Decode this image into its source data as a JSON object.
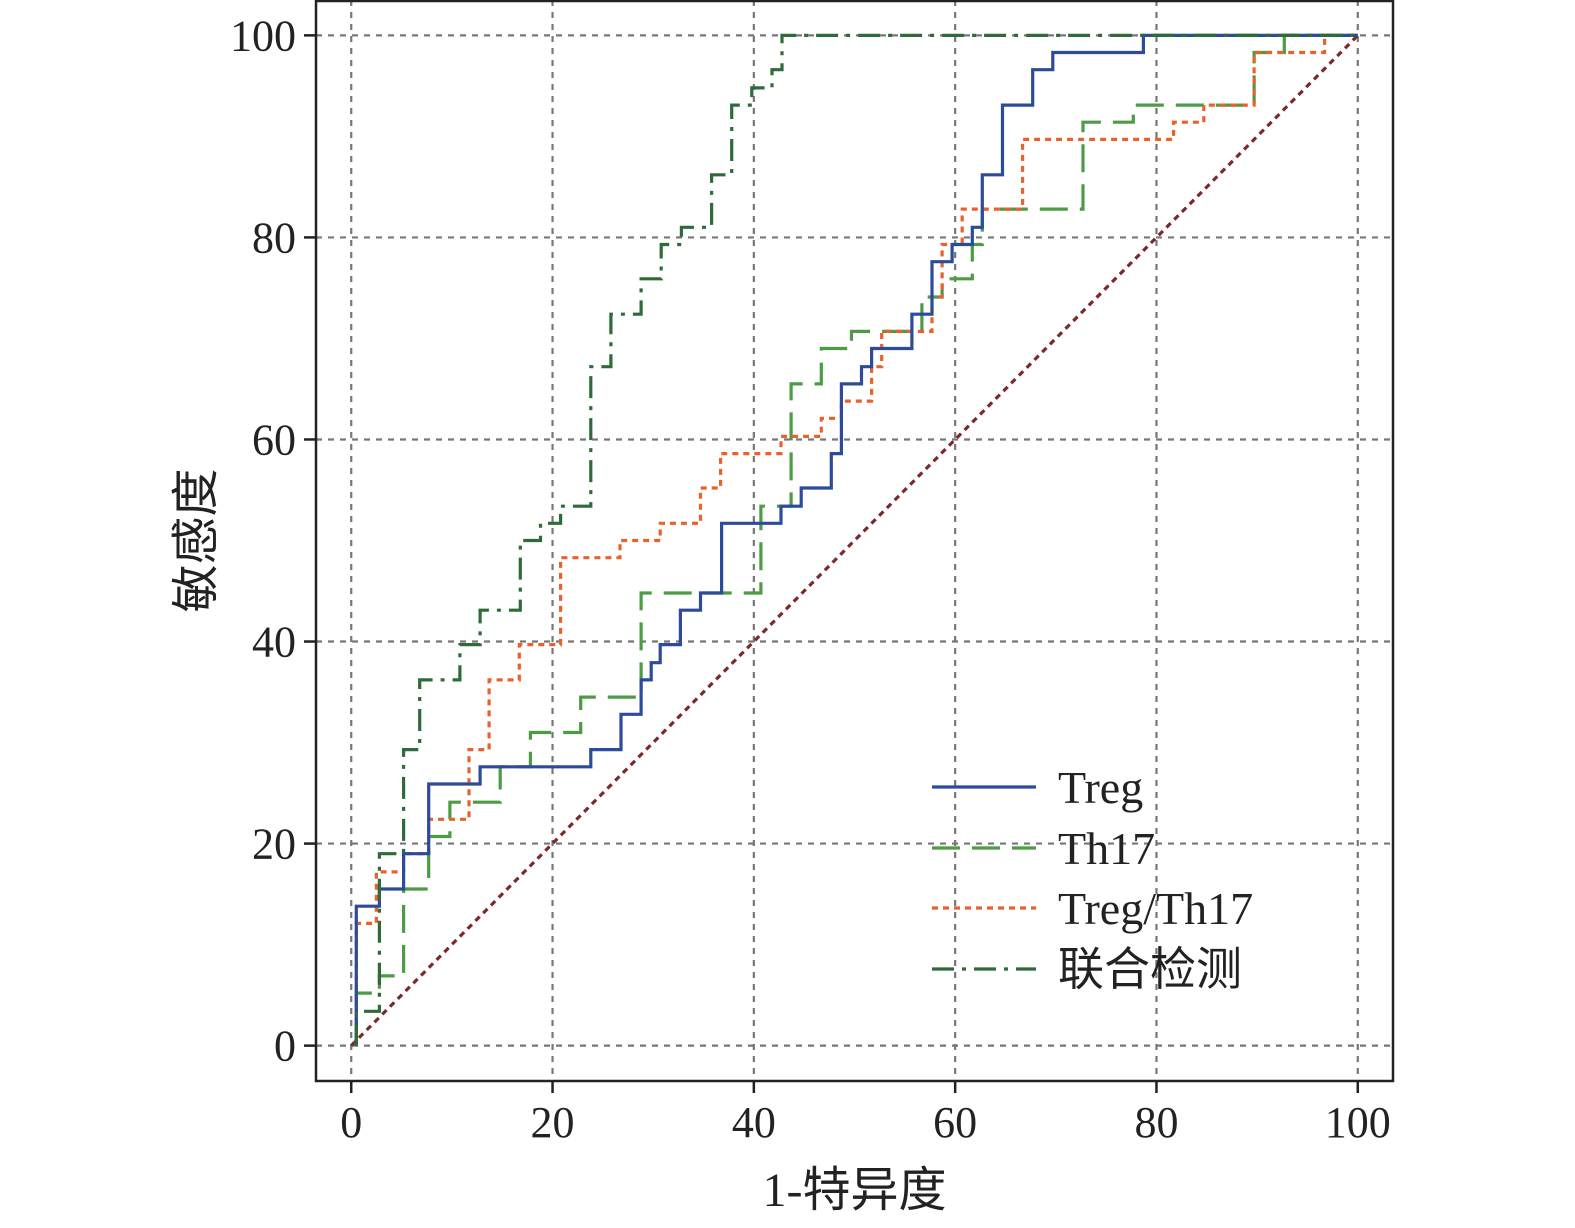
{
  "chart_data": {
    "type": "line",
    "xlabel": "1-特异度",
    "ylabel": "敏感度",
    "xlim": [
      -3.5,
      103.5
    ],
    "ylim": [
      -3.5,
      103.5
    ],
    "xticks": [
      0,
      20,
      40,
      60,
      80,
      100
    ],
    "yticks": [
      0,
      20,
      40,
      60,
      80,
      100
    ],
    "grid": true,
    "legend_position": "lower-right",
    "series": [
      {
        "name": "Treg",
        "color": "#2d4b9b",
        "dash": "solid",
        "x": [
          0.5,
          0.5,
          2.8,
          2.8,
          5.2,
          5.2,
          7.7,
          7.7,
          12.8,
          12.8,
          20.8,
          20.8,
          23.8,
          23.8,
          26.8,
          26.8,
          28.8,
          28.8,
          29.8,
          29.8,
          30.7,
          30.7,
          32.7,
          32.7,
          34.7,
          34.7,
          36.8,
          36.8,
          41.8,
          41.8,
          42.7,
          42.7,
          44.7,
          44.7,
          47.7,
          47.7,
          48.7,
          48.7,
          50.7,
          50.7,
          51.7,
          51.7,
          55.7,
          55.7,
          57.7,
          57.7,
          59.7,
          59.7,
          61.7,
          61.7,
          62.7,
          62.7,
          64.7,
          64.7,
          67.7,
          67.7,
          69.7,
          69.7,
          72.7,
          72.7,
          78.7,
          78.7,
          100
        ],
        "y": [
          0,
          13.8,
          13.8,
          15.5,
          15.5,
          19,
          19,
          25.9,
          25.9,
          27.6,
          27.6,
          27.6,
          27.6,
          29.3,
          29.3,
          32.8,
          32.8,
          36.2,
          36.2,
          37.9,
          37.9,
          39.7,
          39.7,
          43.1,
          43.1,
          44.8,
          44.8,
          51.7,
          51.7,
          51.7,
          51.7,
          53.4,
          53.4,
          55.2,
          55.2,
          58.6,
          58.6,
          65.5,
          65.5,
          67.2,
          67.2,
          69,
          69,
          72.4,
          72.4,
          77.6,
          77.6,
          79.3,
          79.3,
          81,
          81,
          86.2,
          86.2,
          93.1,
          93.1,
          96.6,
          96.6,
          98.3,
          98.3,
          98.3,
          98.3,
          100,
          100
        ]
      },
      {
        "name": "Th17",
        "color": "#4d9b45",
        "dash": "long-dash",
        "x": [
          0.5,
          0.5,
          2.8,
          2.8,
          5.2,
          5.2,
          7.7,
          7.7,
          9.8,
          9.8,
          14.8,
          14.8,
          17.8,
          17.8,
          22.8,
          22.8,
          24.8,
          24.8,
          28.8,
          28.8,
          36.8,
          36.8,
          40.7,
          40.7,
          43.7,
          43.7,
          46.7,
          46.7,
          49.7,
          49.7,
          55.7,
          55.7,
          56.7,
          56.7,
          58.7,
          58.7,
          61.7,
          61.7,
          62.7,
          62.7,
          72.7,
          72.7,
          77.7,
          77.7,
          89.7,
          89.7,
          92.7,
          92.7,
          100
        ],
        "y": [
          0,
          5.2,
          5.2,
          6.9,
          6.9,
          15.5,
          15.5,
          20.7,
          20.7,
          24.1,
          24.1,
          27.6,
          27.6,
          31,
          31,
          34.5,
          34.5,
          34.5,
          34.5,
          44.8,
          44.8,
          44.8,
          44.8,
          53.4,
          53.4,
          65.5,
          65.5,
          69,
          69,
          70.7,
          70.7,
          70.7,
          70.7,
          74.1,
          74.1,
          75.9,
          75.9,
          79.3,
          79.3,
          82.8,
          82.8,
          91.4,
          91.4,
          93.1,
          93.1,
          98.3,
          98.3,
          100,
          100
        ]
      },
      {
        "name": "Treg/Th17",
        "color": "#e8622e",
        "dash": "dotted",
        "x": [
          0.5,
          0.5,
          2.5,
          2.5,
          5.2,
          5.2,
          7.7,
          7.7,
          11.7,
          11.7,
          13.7,
          13.7,
          16.7,
          16.7,
          20.8,
          20.8,
          26.7,
          26.7,
          30.7,
          30.7,
          34.7,
          34.7,
          36.7,
          36.7,
          42.7,
          42.7,
          46.7,
          46.7,
          48.7,
          48.7,
          51.7,
          51.7,
          52.7,
          52.7,
          57.7,
          57.7,
          58.7,
          58.7,
          60.7,
          60.7,
          66.7,
          66.7,
          81.7,
          81.7,
          84.7,
          84.7,
          89.7,
          89.7,
          96.7,
          96.7,
          100
        ],
        "y": [
          0,
          12.1,
          12.1,
          17.2,
          17.2,
          19,
          19,
          22.4,
          22.4,
          29.3,
          29.3,
          36.2,
          36.2,
          39.7,
          39.7,
          48.3,
          48.3,
          50,
          50,
          51.7,
          51.7,
          55.2,
          55.2,
          58.6,
          58.6,
          60.3,
          60.3,
          62.1,
          62.1,
          63.8,
          63.8,
          67.2,
          67.2,
          70.7,
          70.7,
          74.1,
          74.1,
          79.3,
          79.3,
          82.8,
          82.8,
          89.7,
          89.7,
          91.4,
          91.4,
          93.1,
          93.1,
          98.3,
          98.3,
          100,
          100
        ]
      },
      {
        "name": "联合检测",
        "color": "#2f6b3a",
        "dash": "dash-dot",
        "x": [
          0.5,
          0.5,
          2.8,
          2.8,
          5.2,
          5.2,
          6.8,
          6.8,
          10.8,
          10.8,
          12.8,
          12.8,
          16.8,
          16.8,
          18.8,
          18.8,
          20.8,
          20.8,
          23.8,
          23.8,
          25.8,
          25.8,
          28.8,
          28.8,
          30.8,
          30.8,
          32.8,
          32.8,
          35.8,
          35.8,
          37.8,
          37.8,
          39.8,
          39.8,
          41.8,
          41.8,
          42.8,
          42.8,
          100
        ],
        "y": [
          0,
          3.4,
          3.4,
          19,
          19,
          29.3,
          29.3,
          36.2,
          36.2,
          39.7,
          39.7,
          43.1,
          43.1,
          50,
          50,
          51.7,
          51.7,
          53.4,
          53.4,
          67.2,
          67.2,
          72.4,
          72.4,
          75.9,
          75.9,
          79.3,
          79.3,
          81,
          81,
          86.2,
          86.2,
          93.1,
          93.1,
          94.8,
          94.8,
          96.6,
          96.6,
          100,
          100
        ]
      },
      {
        "name": "",
        "color": "#7a2a2a",
        "dash": "dotted",
        "x": [
          0,
          100
        ],
        "y": [
          0,
          100
        ]
      }
    ]
  }
}
